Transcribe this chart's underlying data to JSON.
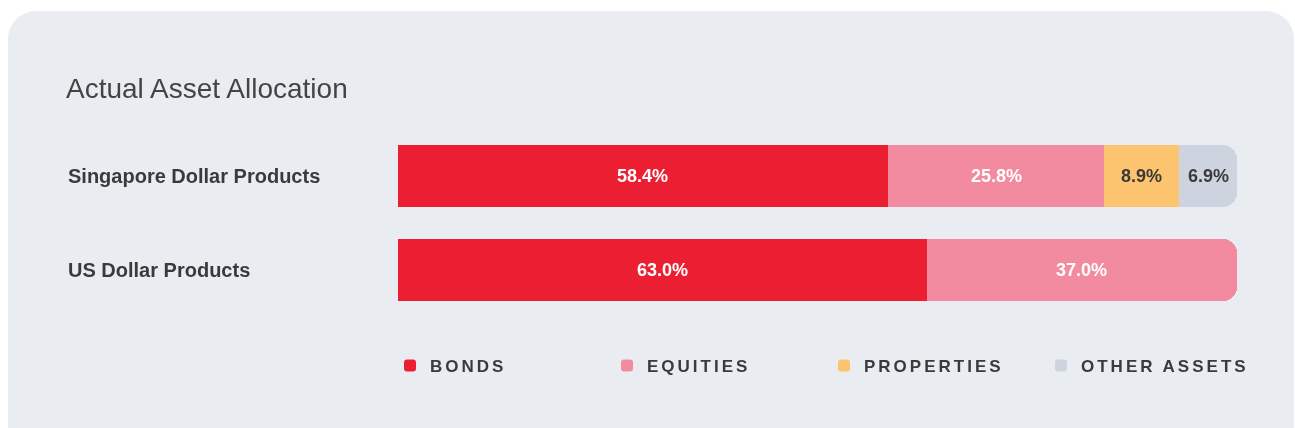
{
  "chart_data": {
    "type": "bar",
    "title": "Actual Asset Allocation",
    "orientation": "horizontal",
    "stacked": true,
    "categories": [
      "Singapore Dollar Products",
      "US Dollar Products"
    ],
    "series": [
      {
        "name": "BONDS",
        "color": "#ec1f32",
        "values": [
          58.4,
          63.0
        ],
        "value_labels": [
          "58.4%",
          "63.0%"
        ]
      },
      {
        "name": "EQUITIES",
        "color": "#f38ba0",
        "values": [
          25.8,
          37.0
        ],
        "value_labels": [
          "25.8%",
          "37.0%"
        ]
      },
      {
        "name": "PROPERTIES",
        "color": "#fdc470",
        "values": [
          8.9,
          null
        ],
        "value_labels": [
          "8.9%",
          null
        ]
      },
      {
        "name": "OTHER ASSETS",
        "color": "#cdd4df",
        "values": [
          6.9,
          null
        ],
        "value_labels": [
          "6.9%",
          null
        ]
      }
    ],
    "xlim": [
      0,
      100
    ],
    "tick_labels": "y",
    "legend": "bottom"
  }
}
